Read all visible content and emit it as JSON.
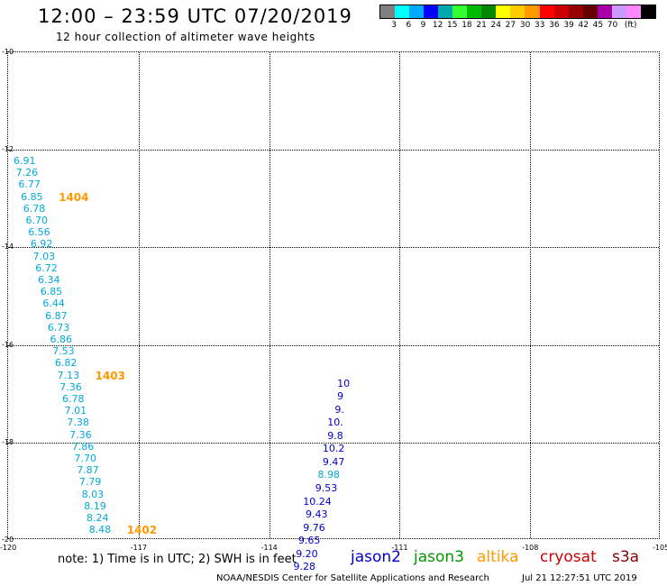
{
  "header": {
    "title": "12:00 – 23:59 UTC 07/20/2019",
    "subtitle": "12 hour collection of altimeter wave heights"
  },
  "color_scale": {
    "colors": [
      "#808080",
      "#00ffff",
      "#00aaff",
      "#0000ff",
      "#00aaaa",
      "#33ff33",
      "#00bb00",
      "#008800",
      "#ffff00",
      "#ffcc00",
      "#ff9900",
      "#ff0000",
      "#cc0000",
      "#990000",
      "#660000",
      "#aa00aa",
      "#cc99ff",
      "#ff88ff",
      "#000000"
    ],
    "labels": [
      "3",
      "6",
      "9",
      "12",
      "15",
      "18",
      "21",
      "24",
      "27",
      "30",
      "33",
      "36",
      "39",
      "42",
      "45",
      "70",
      "(ft)"
    ]
  },
  "map": {
    "lat_labels": [
      "-10",
      "-12",
      "-14",
      "-16",
      "-18",
      "-20"
    ],
    "lon_labels": [
      "-120",
      "-117",
      "-114",
      "-111",
      "-108",
      "-105"
    ],
    "observations": [
      {
        "text": "6.91",
        "color": "#00aadd",
        "row": 0,
        "col": 0
      },
      {
        "text": "7.26",
        "color": "#00aadd",
        "row": 1,
        "col": 1
      },
      {
        "text": "6.77",
        "color": "#00aadd",
        "row": 2,
        "col": 2
      },
      {
        "text": "6.85",
        "color": "#00aadd",
        "row": 3,
        "col": 3
      },
      {
        "text": "6.78",
        "color": "#00aadd",
        "row": 4,
        "col": 4
      },
      {
        "text": "6.70",
        "color": "#00aadd",
        "row": 5,
        "col": 5
      },
      {
        "text": "6.56",
        "color": "#00aadd",
        "row": 6,
        "col": 6
      },
      {
        "text": "6.92",
        "color": "#00aadd",
        "row": 7,
        "col": 7
      },
      {
        "text": "7.03",
        "color": "#00aadd",
        "row": 8,
        "col": 8
      },
      {
        "text": "6.72",
        "color": "#00aadd",
        "row": 9,
        "col": 9
      },
      {
        "text": "6.34",
        "color": "#00aadd",
        "row": 10,
        "col": 10
      },
      {
        "text": "6.85",
        "color": "#00aadd",
        "row": 11,
        "col": 11
      },
      {
        "text": "6.44",
        "color": "#00aadd",
        "row": 12,
        "col": 12
      },
      {
        "text": "6.87",
        "color": "#00aadd",
        "row": 13,
        "col": 13
      },
      {
        "text": "6.73",
        "color": "#00aadd",
        "row": 14,
        "col": 14
      },
      {
        "text": "6.86",
        "color": "#00aadd",
        "row": 15,
        "col": 15
      },
      {
        "text": "7.53",
        "color": "#00aadd",
        "row": 16,
        "col": 16
      },
      {
        "text": "6.82",
        "color": "#00aadd",
        "row": 17,
        "col": 17
      },
      {
        "text": "7.13",
        "color": "#00aadd",
        "row": 18,
        "col": 18
      },
      {
        "text": "7.36",
        "color": "#00aadd",
        "row": 19,
        "col": 19
      },
      {
        "text": "6.78",
        "color": "#00aadd",
        "row": 20,
        "col": 20
      },
      {
        "text": "7.01",
        "color": "#00aadd",
        "row": 21,
        "col": 21
      },
      {
        "text": "7.38",
        "color": "#00aadd",
        "row": 22,
        "col": 22
      },
      {
        "text": "7.36",
        "color": "#00aadd",
        "row": 23,
        "col": 23
      },
      {
        "text": "7.86",
        "color": "#00aadd",
        "row": 24,
        "col": 24
      },
      {
        "text": "7.70",
        "color": "#00aadd",
        "row": 25,
        "col": 25
      },
      {
        "text": "7.87",
        "color": "#00aadd",
        "row": 26,
        "col": 26
      },
      {
        "text": "7.79",
        "color": "#00aadd",
        "row": 27,
        "col": 27
      },
      {
        "text": "8.03",
        "color": "#00aadd",
        "row": 28,
        "col": 28
      },
      {
        "text": "8.19",
        "color": "#00aadd",
        "row": 29,
        "col": 29
      },
      {
        "text": "8.24",
        "color": "#00aadd",
        "row": 30,
        "col": 30
      },
      {
        "text": "8.48",
        "color": "#00aadd",
        "row": 31,
        "col": 31
      },
      {
        "text": "10",
        "color": "#0000cc",
        "row": 18.7,
        "col": 133
      },
      {
        "text": "9",
        "color": "#0000cc",
        "row": 19.8,
        "col": 133
      },
      {
        "text": "9.",
        "color": "#0000cc",
        "row": 20.9,
        "col": 132
      },
      {
        "text": "10.",
        "color": "#0000cc",
        "row": 22,
        "col": 129
      },
      {
        "text": "9.8",
        "color": "#0000cc",
        "row": 23.1,
        "col": 129
      },
      {
        "text": "10.2",
        "color": "#0000cc",
        "row": 24.2,
        "col": 127
      },
      {
        "text": "9.47",
        "color": "#0000cc",
        "row": 25.3,
        "col": 127
      },
      {
        "text": "8.98",
        "color": "#00aadd",
        "row": 26.4,
        "col": 125
      },
      {
        "text": "9.53",
        "color": "#0000cc",
        "row": 27.5,
        "col": 124
      },
      {
        "text": "10.24",
        "color": "#0000cc",
        "row": 28.6,
        "col": 119
      },
      {
        "text": "9.43",
        "color": "#0000cc",
        "row": 29.7,
        "col": 120
      },
      {
        "text": "9.76",
        "color": "#0000cc",
        "row": 30.8,
        "col": 119
      },
      {
        "text": "9.65",
        "color": "#0000cc",
        "row": 31.9,
        "col": 117
      },
      {
        "text": "9.20",
        "color": "#0000cc",
        "row": 33,
        "col": 116
      },
      {
        "text": "9.28",
        "color": "#0000cc",
        "row": 34.1,
        "col": 115
      }
    ],
    "time_labels": [
      {
        "text": "1404",
        "row": 3
      },
      {
        "text": "1403",
        "row": 18
      },
      {
        "text": "1402",
        "row": 31
      }
    ]
  },
  "footer": {
    "note": "note:  1) Time is in UTC;  2) SWH is in feet",
    "legend": [
      {
        "name": "jason2",
        "color": "#0000cc"
      },
      {
        "name": "jason3",
        "color": "#009900"
      },
      {
        "name": "altika",
        "color": "#ff9900"
      },
      {
        "name": "cryosat",
        "color": "#cc0000"
      },
      {
        "name": "s3a",
        "color": "#880000"
      }
    ],
    "credit": "NOAA/NESDIS Center for Satellite Applications and Research",
    "timestamp": "Jul 21 12:27:51 UTC 2019"
  }
}
